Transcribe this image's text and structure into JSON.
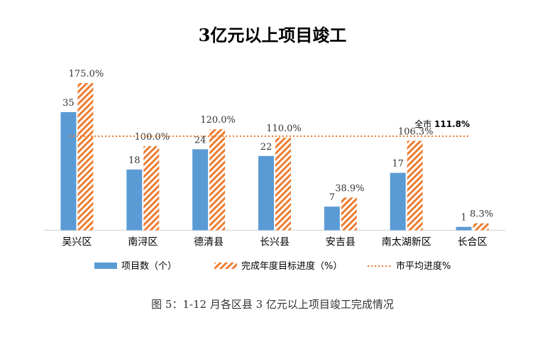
{
  "chart_data": {
    "type": "bar",
    "title": "3亿元以上项目竣工",
    "categories": [
      "吴兴区",
      "南浔区",
      "德清县",
      "长兴县",
      "安吉县",
      "南太湖新区",
      "长合区"
    ],
    "series": [
      {
        "name": "项目数（个）",
        "kind": "bar-solid",
        "axis": "count",
        "values": [
          35,
          18,
          24,
          22,
          7,
          17,
          1
        ],
        "labels": [
          "35",
          "18",
          "24",
          "22",
          "7",
          "17",
          "1"
        ],
        "color": "#5B9BD5"
      },
      {
        "name": "完成年度目标进度（%）",
        "kind": "bar-hatched",
        "axis": "percent",
        "values": [
          175.0,
          100.0,
          120.0,
          110.0,
          38.9,
          106.3,
          8.3
        ],
        "labels": [
          "175.0%",
          "100.0%",
          "120.0%",
          "110.0%",
          "38.9%",
          "106.3%",
          "8.3%"
        ],
        "color": "#ED7D31"
      },
      {
        "name": "市平均进度%",
        "kind": "reference-line",
        "axis": "percent",
        "value": 111.8,
        "color": "#ED7D31"
      }
    ],
    "reference_label": {
      "prefix": "全市",
      "value": "111.8%"
    },
    "axis_count_max": 35,
    "axis_percent_max": 175.0,
    "legend_position": "bottom",
    "grid": false,
    "xlabel": "",
    "ylabel": ""
  },
  "caption": "图 5：1-12 月各区县 3 亿元以上项目竣工完成情况"
}
